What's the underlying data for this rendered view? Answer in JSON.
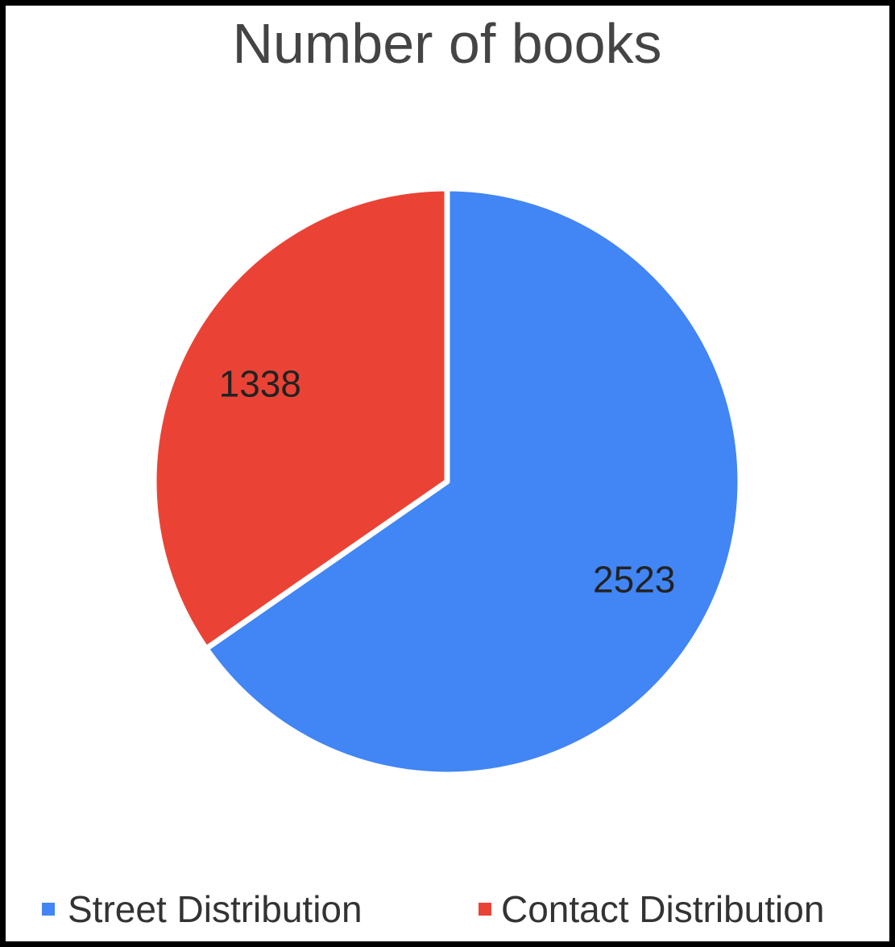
{
  "chart_data": {
    "type": "pie",
    "title": "Number of books",
    "slices": [
      {
        "label": "Street Distribution",
        "value": 2523,
        "color": "#4285f4"
      },
      {
        "label": "Contact Distribution",
        "value": 1338,
        "color": "#ea4335"
      }
    ],
    "start": "top, clockwise",
    "legend_position": "bottom",
    "data_labels": [
      "2523",
      "1338"
    ]
  }
}
